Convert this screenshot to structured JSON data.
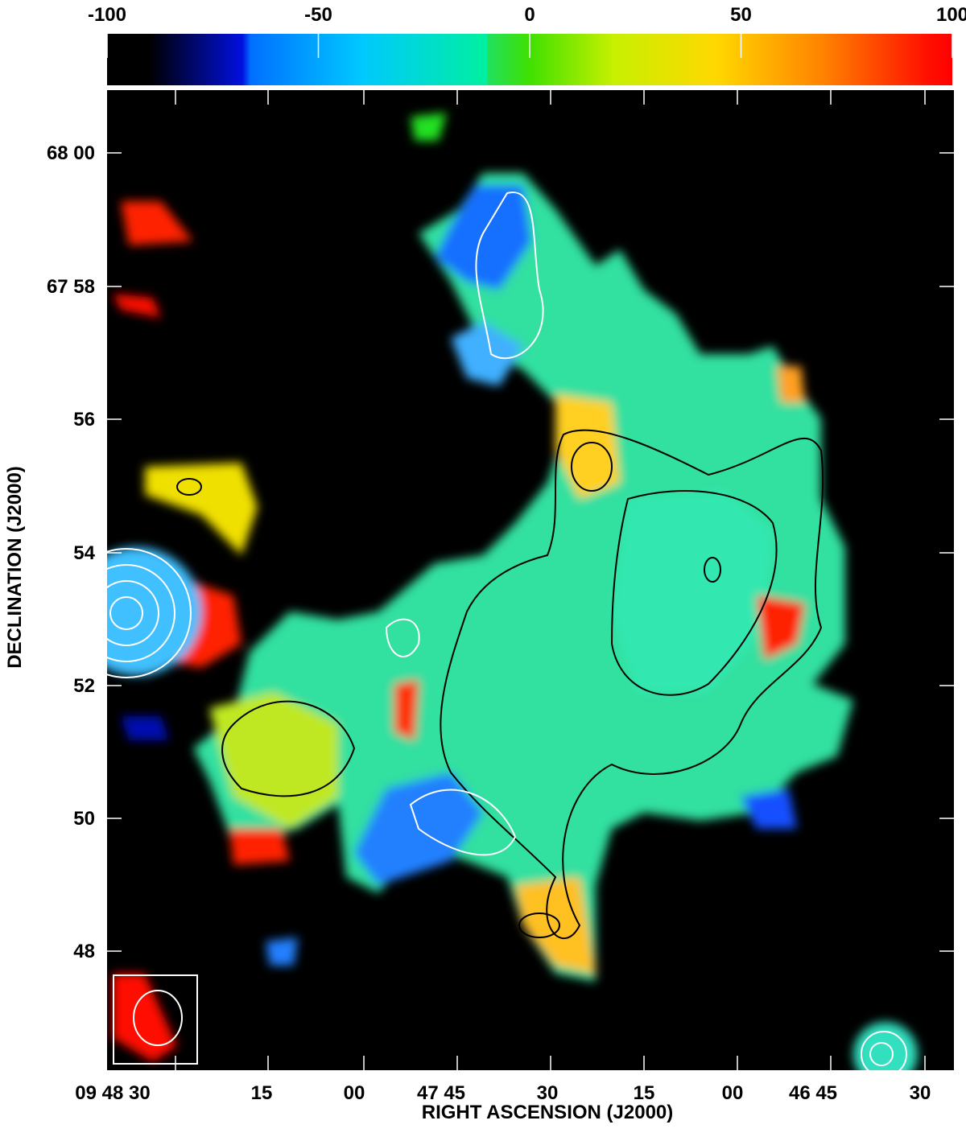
{
  "colorbar": {
    "range": [
      -100,
      100
    ],
    "ticks": [
      -100,
      -50,
      0,
      50,
      100
    ]
  },
  "x_axis": {
    "title": "RIGHT ASCENSION (J2000)",
    "ticks": [
      "09 48 30",
      "15",
      "00",
      "47 45",
      "30",
      "15",
      "00",
      "46 45",
      "30"
    ]
  },
  "y_axis": {
    "title": "DECLINATION (J2000)",
    "ticks": [
      "68 00",
      "67 58",
      "56",
      "54",
      "52",
      "50",
      "48"
    ]
  }
}
